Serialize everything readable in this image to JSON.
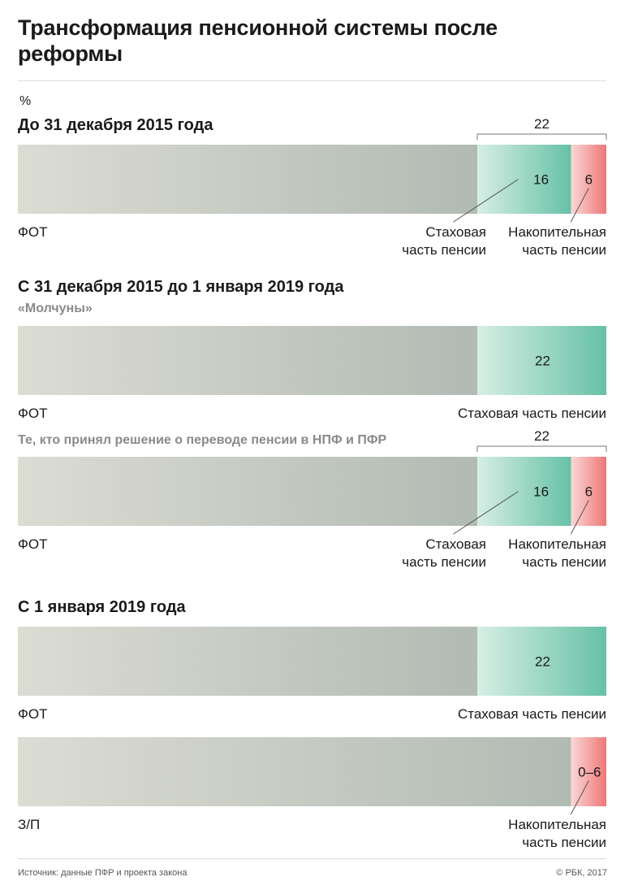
{
  "title": "Трансформация пенсионной системы после реформы",
  "unit": "%",
  "sections": {
    "s1": "До 31 декабря 2015 года",
    "s2": "С 31 декабря 2015 до 1 января 2019 года",
    "s2_sub1": "«Молчуны»",
    "s2_sub2": "Те, кто принял решение о переводе пенсии в НПФ и ПФР",
    "s3": "С 1 января 2019 года"
  },
  "source": "Источник: данные ПФР и проекта закона",
  "copyright": "© РБК, 2017",
  "colors": {
    "base_start": "#dcdcd3",
    "base_end": "#b1bbb3",
    "insurance_start": "#d7eee4",
    "insurance_end": "#66c1a6",
    "funded_start": "#fbd6d6",
    "funded_end": "#ee7777"
  },
  "chart_data": [
    {
      "type": "bar",
      "period": "До 31 декабря 2015 года",
      "base_label": "ФОТ",
      "total": "22",
      "segments": [
        {
          "name": "Стаховая часть пенсии",
          "value": 16,
          "label": "16",
          "name_lines": [
            "Стаховая",
            "часть пенсии"
          ]
        },
        {
          "name": "Накопительная часть пенсии",
          "value": 6,
          "label": "6",
          "name_lines": [
            "Накопительная",
            "часть пенсии"
          ]
        }
      ]
    },
    {
      "type": "bar",
      "period": "С 31 декабря 2015 до 1 января 2019 года",
      "group": "«Молчуны»",
      "base_label": "ФОТ",
      "segments": [
        {
          "name": "Стаховая часть пенсии",
          "value": 22,
          "label": "22",
          "name_lines": [
            "Стаховая часть пенсии"
          ]
        }
      ]
    },
    {
      "type": "bar",
      "period": "С 31 декабря 2015 до 1 января 2019 года",
      "group": "Те, кто принял решение о переводе пенсии в НПФ и ПФР",
      "base_label": "ФОТ",
      "total": "22",
      "segments": [
        {
          "name": "Стаховая часть пенсии",
          "value": 16,
          "label": "16",
          "name_lines": [
            "Стаховая",
            "часть пенсии"
          ]
        },
        {
          "name": "Накопительная часть пенсии",
          "value": 6,
          "label": "6",
          "name_lines": [
            "Накопительная",
            "часть пенсии"
          ]
        }
      ]
    },
    {
      "type": "bar",
      "period": "С 1 января 2019 года",
      "base_label": "ФОТ",
      "segments": [
        {
          "name": "Стаховая часть пенсии",
          "value": 22,
          "label": "22",
          "name_lines": [
            "Стаховая часть пенсии"
          ]
        }
      ]
    },
    {
      "type": "bar",
      "period": "С 1 января 2019 года",
      "base_label": "З/П",
      "segments": [
        {
          "name": "Накопительная часть пенсии",
          "value": 6,
          "label": "0–6",
          "name_lines": [
            "Накопительная",
            "часть пенсии"
          ]
        }
      ]
    }
  ]
}
